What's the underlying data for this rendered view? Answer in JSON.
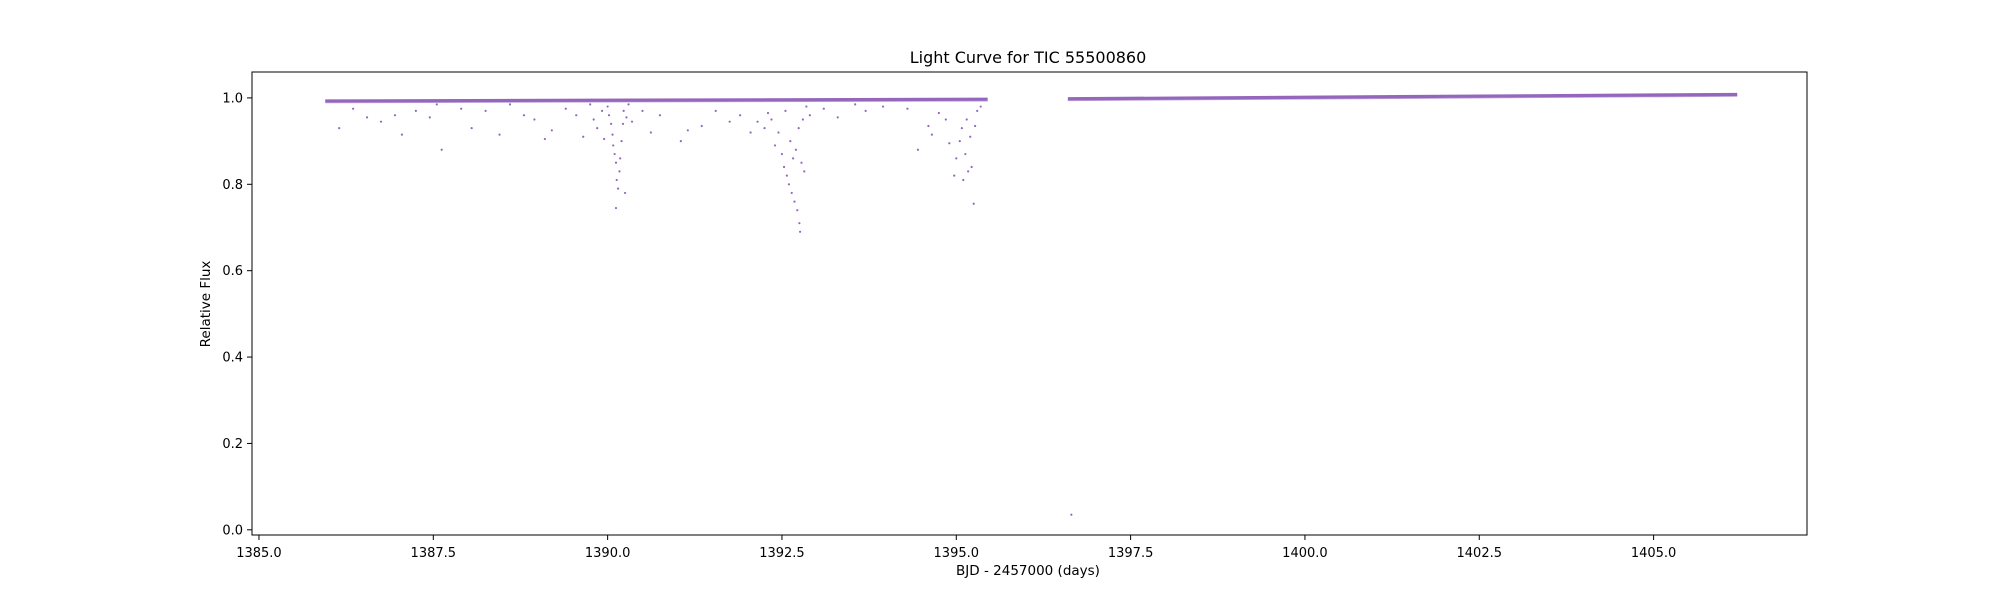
{
  "chart_data": {
    "type": "scatter",
    "title": "Light Curve for TIC 55500860",
    "xlabel": "BJD - 2457000 (days)",
    "ylabel": "Relative Flux",
    "xlim": [
      1384.9,
      1407.2
    ],
    "ylim": [
      -0.012,
      1.06
    ],
    "x_ticks": [
      1385.0,
      1387.5,
      1390.0,
      1392.5,
      1395.0,
      1397.5,
      1400.0,
      1402.5,
      1405.0
    ],
    "x_tick_labels": [
      "1385.0",
      "1387.5",
      "1390.0",
      "1392.5",
      "1395.0",
      "1397.5",
      "1400.0",
      "1402.5",
      "1405.0"
    ],
    "y_ticks": [
      0.0,
      0.2,
      0.4,
      0.6,
      0.8,
      1.0
    ],
    "y_tick_labels": [
      "0.0",
      "0.2",
      "0.4",
      "0.6",
      "0.8",
      "1.0"
    ],
    "grid": false,
    "marker_color": "#9467bd",
    "baseline_segments": [
      {
        "x": [
          1385.95,
          1395.45
        ],
        "y": [
          0.993,
          0.997
        ]
      },
      {
        "x": [
          1396.6,
          1406.2
        ],
        "y": [
          0.998,
          1.008
        ]
      }
    ],
    "points": [
      [
        1386.15,
        0.93
      ],
      [
        1386.35,
        0.975
      ],
      [
        1386.55,
        0.955
      ],
      [
        1386.75,
        0.945
      ],
      [
        1386.95,
        0.96
      ],
      [
        1387.05,
        0.915
      ],
      [
        1387.25,
        0.97
      ],
      [
        1387.45,
        0.955
      ],
      [
        1387.55,
        0.985
      ],
      [
        1387.62,
        0.88
      ],
      [
        1387.9,
        0.975
      ],
      [
        1388.05,
        0.93
      ],
      [
        1388.25,
        0.97
      ],
      [
        1388.45,
        0.915
      ],
      [
        1388.6,
        0.985
      ],
      [
        1388.8,
        0.96
      ],
      [
        1388.95,
        0.95
      ],
      [
        1389.1,
        0.905
      ],
      [
        1389.2,
        0.925
      ],
      [
        1389.4,
        0.975
      ],
      [
        1389.55,
        0.96
      ],
      [
        1389.65,
        0.91
      ],
      [
        1389.75,
        0.985
      ],
      [
        1389.8,
        0.95
      ],
      [
        1389.85,
        0.93
      ],
      [
        1389.92,
        0.97
      ],
      [
        1389.95,
        0.905
      ],
      [
        1390.0,
        0.98
      ],
      [
        1390.02,
        0.96
      ],
      [
        1390.05,
        0.94
      ],
      [
        1390.07,
        0.915
      ],
      [
        1390.08,
        0.89
      ],
      [
        1390.1,
        0.87
      ],
      [
        1390.12,
        0.85
      ],
      [
        1390.13,
        0.81
      ],
      [
        1390.15,
        0.79
      ],
      [
        1390.17,
        0.83
      ],
      [
        1390.18,
        0.86
      ],
      [
        1390.2,
        0.9
      ],
      [
        1390.22,
        0.94
      ],
      [
        1390.23,
        0.97
      ],
      [
        1390.25,
        0.78
      ],
      [
        1390.27,
        0.955
      ],
      [
        1390.3,
        0.985
      ],
      [
        1390.35,
        0.945
      ],
      [
        1390.5,
        0.97
      ],
      [
        1390.62,
        0.92
      ],
      [
        1390.75,
        0.96
      ],
      [
        1390.12,
        0.745
      ],
      [
        1391.05,
        0.9
      ],
      [
        1391.15,
        0.925
      ],
      [
        1391.35,
        0.935
      ],
      [
        1391.55,
        0.97
      ],
      [
        1391.75,
        0.945
      ],
      [
        1391.9,
        0.96
      ],
      [
        1392.05,
        0.92
      ],
      [
        1392.15,
        0.945
      ],
      [
        1392.25,
        0.93
      ],
      [
        1392.3,
        0.965
      ],
      [
        1392.35,
        0.95
      ],
      [
        1392.4,
        0.89
      ],
      [
        1392.45,
        0.92
      ],
      [
        1392.5,
        0.87
      ],
      [
        1392.53,
        0.84
      ],
      [
        1392.55,
        0.97
      ],
      [
        1392.57,
        0.82
      ],
      [
        1392.6,
        0.8
      ],
      [
        1392.62,
        0.9
      ],
      [
        1392.64,
        0.78
      ],
      [
        1392.66,
        0.86
      ],
      [
        1392.68,
        0.76
      ],
      [
        1392.7,
        0.88
      ],
      [
        1392.72,
        0.74
      ],
      [
        1392.74,
        0.93
      ],
      [
        1392.75,
        0.71
      ],
      [
        1392.76,
        0.69
      ],
      [
        1392.78,
        0.85
      ],
      [
        1392.8,
        0.95
      ],
      [
        1392.82,
        0.83
      ],
      [
        1392.85,
        0.98
      ],
      [
        1392.9,
        0.96
      ],
      [
        1393.1,
        0.975
      ],
      [
        1393.3,
        0.955
      ],
      [
        1393.55,
        0.985
      ],
      [
        1393.7,
        0.97
      ],
      [
        1393.95,
        0.98
      ],
      [
        1394.3,
        0.975
      ],
      [
        1394.45,
        0.88
      ],
      [
        1394.6,
        0.935
      ],
      [
        1394.65,
        0.915
      ],
      [
        1394.75,
        0.965
      ],
      [
        1394.85,
        0.95
      ],
      [
        1394.9,
        0.895
      ],
      [
        1394.97,
        0.82
      ],
      [
        1395.0,
        0.86
      ],
      [
        1395.05,
        0.9
      ],
      [
        1395.08,
        0.93
      ],
      [
        1395.1,
        0.81
      ],
      [
        1395.13,
        0.87
      ],
      [
        1395.15,
        0.95
      ],
      [
        1395.17,
        0.83
      ],
      [
        1395.2,
        0.91
      ],
      [
        1395.22,
        0.84
      ],
      [
        1395.25,
        0.755
      ],
      [
        1395.27,
        0.935
      ],
      [
        1395.3,
        0.97
      ],
      [
        1395.35,
        0.98
      ],
      [
        1396.65,
        0.035
      ]
    ]
  }
}
